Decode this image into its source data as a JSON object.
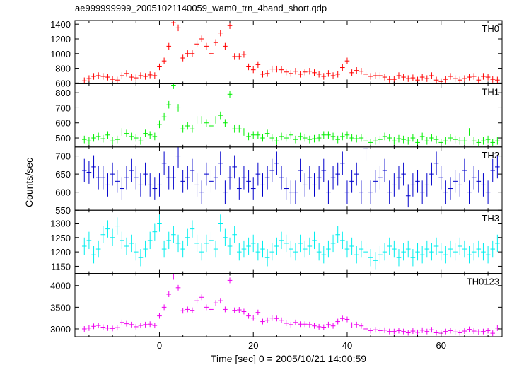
{
  "chart_data": {
    "type": "line",
    "title": "ae999999999_20051021140059_wam0_trn_4band_short.qdp",
    "xlabel": "Time [sec] 0 = 2005/10/21 14:00:59",
    "ylabel": "Counts/sec",
    "xlim": [
      -18,
      73
    ],
    "xticks": [
      0,
      20,
      40,
      60
    ],
    "grid": false,
    "panels": [
      {
        "name": "TH0",
        "color": "#ff0000",
        "ylim": [
          590,
          1450
        ],
        "yticks": [
          600,
          800,
          1000,
          1200,
          1400
        ],
        "x": [
          -16,
          -15,
          -14,
          -13,
          -12,
          -11,
          -10,
          -9,
          -8,
          -7,
          -6,
          -5,
          -4,
          -3,
          -2,
          -1,
          0,
          1,
          2,
          3,
          4,
          5,
          6,
          7,
          8,
          9,
          10,
          11,
          12,
          13,
          14,
          15,
          16,
          17,
          18,
          19,
          20,
          21,
          22,
          23,
          24,
          25,
          26,
          27,
          28,
          29,
          30,
          31,
          32,
          33,
          34,
          35,
          36,
          37,
          38,
          39,
          40,
          41,
          42,
          43,
          44,
          45,
          46,
          47,
          48,
          49,
          50,
          51,
          52,
          53,
          54,
          55,
          56,
          57,
          58,
          59,
          60,
          61,
          62,
          63,
          64,
          65,
          66,
          67,
          68,
          69,
          70,
          71,
          72
        ],
        "y": [
          630,
          660,
          690,
          700,
          690,
          680,
          650,
          640,
          700,
          730,
          680,
          670,
          700,
          690,
          710,
          700,
          820,
          900,
          1100,
          1420,
          1350,
          940,
          1000,
          1000,
          1130,
          1200,
          1100,
          1000,
          1150,
          1280,
          1100,
          1380,
          960,
          960,
          990,
          820,
          780,
          850,
          720,
          730,
          790,
          790,
          780,
          750,
          730,
          760,
          720,
          750,
          760,
          740,
          720,
          690,
          730,
          700,
          720,
          810,
          900,
          740,
          770,
          760,
          720,
          690,
          700,
          700,
          680,
          650,
          650,
          700,
          680,
          660,
          670,
          640,
          680,
          660,
          700,
          640,
          620,
          650,
          690,
          660,
          640,
          660,
          680,
          690,
          640,
          690,
          680,
          650,
          640
        ],
        "err": 45
      },
      {
        "name": "TH1",
        "color": "#00ee00",
        "ylim": [
          440,
          860
        ],
        "yticks": [
          500,
          600,
          700,
          800
        ],
        "x": [
          -16,
          -15,
          -14,
          -13,
          -12,
          -11,
          -10,
          -9,
          -8,
          -7,
          -6,
          -5,
          -4,
          -3,
          -2,
          -1,
          0,
          1,
          2,
          3,
          4,
          5,
          6,
          7,
          8,
          9,
          10,
          11,
          12,
          13,
          14,
          15,
          16,
          17,
          18,
          19,
          20,
          21,
          22,
          23,
          24,
          25,
          26,
          27,
          28,
          29,
          30,
          31,
          32,
          33,
          34,
          35,
          36,
          37,
          38,
          39,
          40,
          41,
          42,
          43,
          44,
          45,
          46,
          47,
          48,
          49,
          50,
          51,
          52,
          53,
          54,
          55,
          56,
          57,
          58,
          59,
          60,
          61,
          62,
          63,
          64,
          65,
          66,
          67,
          68,
          69,
          70,
          71,
          72
        ],
        "y": [
          490,
          480,
          500,
          510,
          495,
          520,
          480,
          490,
          540,
          530,
          510,
          500,
          480,
          530,
          520,
          510,
          590,
          640,
          720,
          850,
          700,
          560,
          580,
          560,
          620,
          620,
          600,
          580,
          620,
          650,
          600,
          790,
          560,
          560,
          540,
          510,
          520,
          520,
          500,
          530,
          500,
          480,
          510,
          500,
          520,
          490,
          510,
          500,
          490,
          495,
          500,
          520,
          520,
          510,
          490,
          510,
          520,
          500,
          495,
          500,
          480,
          470,
          480,
          490,
          510,
          500,
          480,
          495,
          490,
          480,
          500,
          470,
          510,
          480,
          500,
          490,
          470,
          480,
          500,
          490,
          480,
          480,
          540,
          480,
          470,
          480,
          490,
          470,
          480
        ],
        "err": 25
      },
      {
        "name": "TH2",
        "color": "#0000cc",
        "ylim": [
          550,
          725
        ],
        "yticks": [
          550,
          600,
          650,
          700
        ],
        "x": [
          -16,
          -15,
          -14,
          -13,
          -12,
          -11,
          -10,
          -9,
          -8,
          -7,
          -6,
          -5,
          -4,
          -3,
          -2,
          -1,
          0,
          1,
          2,
          3,
          4,
          5,
          6,
          7,
          8,
          9,
          10,
          11,
          12,
          13,
          14,
          15,
          16,
          17,
          18,
          19,
          20,
          21,
          22,
          23,
          24,
          25,
          26,
          27,
          28,
          29,
          30,
          31,
          32,
          33,
          34,
          35,
          36,
          37,
          38,
          39,
          40,
          41,
          42,
          43,
          44,
          45,
          46,
          47,
          48,
          49,
          50,
          51,
          52,
          53,
          54,
          55,
          56,
          57,
          58,
          59,
          60,
          61,
          62,
          63,
          64,
          65,
          66,
          67,
          68,
          69,
          70,
          71,
          72
        ],
        "y": [
          660,
          655,
          670,
          640,
          640,
          620,
          650,
          630,
          610,
          640,
          660,
          640,
          620,
          650,
          620,
          610,
          620,
          680,
          640,
          640,
          700,
          630,
          640,
          660,
          620,
          600,
          650,
          630,
          640,
          680,
          600,
          640,
          670,
          610,
          640,
          630,
          610,
          650,
          620,
          640,
          660,
          680,
          640,
          610,
          600,
          600,
          660,
          620,
          640,
          620,
          640,
          660,
          600,
          640,
          650,
          680,
          600,
          630,
          650,
          600,
          720,
          600,
          630,
          640,
          660,
          600,
          620,
          640,
          650,
          590,
          620,
          630,
          600,
          620,
          650,
          680,
          640,
          600,
          610,
          630,
          620,
          660,
          600,
          640,
          630,
          620,
          600,
          660,
          670
        ],
        "err": 32
      },
      {
        "name": "TH3",
        "color": "#00eeee",
        "ylim": [
          1125,
          1345
        ],
        "yticks": [
          1150,
          1200,
          1250,
          1300
        ],
        "x": [
          -16,
          -15,
          -14,
          -13,
          -12,
          -11,
          -10,
          -9,
          -8,
          -7,
          -6,
          -5,
          -4,
          -3,
          -2,
          -1,
          0,
          1,
          2,
          3,
          4,
          5,
          6,
          7,
          8,
          9,
          10,
          11,
          12,
          13,
          14,
          15,
          16,
          17,
          18,
          19,
          20,
          21,
          22,
          23,
          24,
          25,
          26,
          27,
          28,
          29,
          30,
          31,
          32,
          33,
          34,
          35,
          36,
          37,
          38,
          39,
          40,
          41,
          42,
          43,
          44,
          45,
          46,
          47,
          48,
          49,
          50,
          51,
          52,
          53,
          54,
          55,
          56,
          57,
          58,
          59,
          60,
          61,
          62,
          63,
          64,
          65,
          66,
          67,
          68,
          69,
          70,
          71,
          72
        ],
        "y": [
          1220,
          1240,
          1190,
          1210,
          1260,
          1280,
          1250,
          1290,
          1240,
          1220,
          1230,
          1200,
          1180,
          1210,
          1240,
          1270,
          1300,
          1210,
          1240,
          1260,
          1230,
          1210,
          1250,
          1280,
          1230,
          1200,
          1230,
          1240,
          1210,
          1300,
          1250,
          1220,
          1260,
          1200,
          1210,
          1220,
          1230,
          1200,
          1210,
          1180,
          1200,
          1220,
          1240,
          1230,
          1210,
          1200,
          1230,
          1210,
          1220,
          1240,
          1200,
          1190,
          1210,
          1230,
          1260,
          1240,
          1210,
          1220,
          1190,
          1210,
          1200,
          1180,
          1170,
          1190,
          1200,
          1220,
          1210,
          1180,
          1200,
          1210,
          1180,
          1200,
          1190,
          1210,
          1200,
          1220,
          1200,
          1190,
          1210,
          1200,
          1220,
          1210,
          1190,
          1200,
          1210,
          1200,
          1190,
          1210,
          1230
        ],
        "err": 30
      },
      {
        "name": "TH0123",
        "color": "#ee00ee",
        "ylim": [
          2820,
          4280
        ],
        "yticks": [
          3000,
          3500,
          4000
        ],
        "x": [
          -16,
          -15,
          -14,
          -13,
          -12,
          -11,
          -10,
          -9,
          -8,
          -7,
          -6,
          -5,
          -4,
          -3,
          -2,
          -1,
          0,
          1,
          2,
          3,
          4,
          5,
          6,
          7,
          8,
          9,
          10,
          11,
          12,
          13,
          14,
          15,
          16,
          17,
          18,
          19,
          20,
          21,
          22,
          23,
          24,
          25,
          26,
          27,
          28,
          29,
          30,
          31,
          32,
          33,
          34,
          35,
          36,
          37,
          38,
          39,
          40,
          41,
          42,
          43,
          44,
          45,
          46,
          47,
          48,
          49,
          50,
          51,
          52,
          53,
          54,
          55,
          56,
          57,
          58,
          59,
          60,
          61,
          62,
          63,
          64,
          65,
          66,
          67,
          68,
          69,
          70,
          71,
          72
        ],
        "y": [
          3000,
          3020,
          3060,
          3080,
          3040,
          3020,
          3010,
          3030,
          3150,
          3120,
          3100,
          3050,
          3080,
          3100,
          3110,
          3080,
          3300,
          3500,
          3800,
          4200,
          3950,
          3420,
          3450,
          3430,
          3650,
          3730,
          3500,
          3450,
          3600,
          3650,
          3450,
          4120,
          3430,
          3440,
          3400,
          3300,
          3250,
          3380,
          3170,
          3200,
          3250,
          3240,
          3200,
          3130,
          3100,
          3150,
          3110,
          3110,
          3100,
          3070,
          3050,
          3040,
          3100,
          3070,
          3170,
          3240,
          3220,
          3090,
          3100,
          3070,
          3000,
          2960,
          2980,
          2960,
          2970,
          2940,
          2940,
          2960,
          2940,
          2910,
          2950,
          2920,
          2970,
          2940,
          2980,
          2910,
          2900,
          2940,
          2960,
          2930,
          2910,
          2950,
          2990,
          2950,
          2930,
          2940,
          2960,
          2900,
          3020
        ],
        "err": 65
      }
    ]
  }
}
